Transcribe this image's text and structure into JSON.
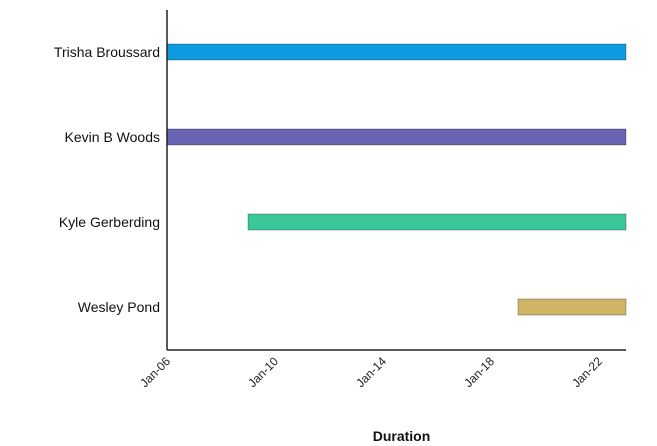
{
  "chart_data": {
    "type": "bar",
    "orientation": "horizontal",
    "xlabel": "Duration",
    "ylabel": "",
    "x_axis": {
      "type": "date",
      "ticks": [
        "Jan-06",
        "Jan-10",
        "Jan-14",
        "Jan-18",
        "Jan-22"
      ],
      "range": [
        "Jan-06",
        "Jan-23"
      ]
    },
    "categories": [
      "Trisha Broussard",
      "Kevin B Woods",
      "Kyle Gerberding",
      "Wesley Pond"
    ],
    "tasks": [
      {
        "name": "Trisha Broussard",
        "start": "Jan-06",
        "end": "Jan-23",
        "color": "#0e9be0"
      },
      {
        "name": "Kevin B Woods",
        "start": "Jan-06",
        "end": "Jan-23",
        "color": "#6a64b4"
      },
      {
        "name": "Kyle Gerberding",
        "start": "Jan-09",
        "end": "Jan-23",
        "color": "#3cc79b"
      },
      {
        "name": "Wesley Pond",
        "start": "Jan-19",
        "end": "Jan-23",
        "color": "#cfb565"
      }
    ],
    "grid": false,
    "legend": "none"
  }
}
